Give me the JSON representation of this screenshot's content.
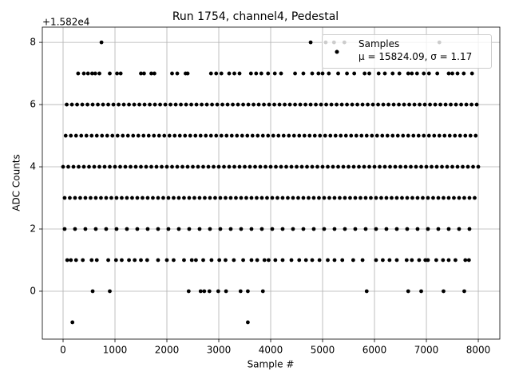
{
  "chart_data": {
    "type": "scatter",
    "title": "Run 1754, channel4, Pedestal",
    "xlabel": "Sample #",
    "ylabel": "ADC Counts",
    "y_offset_label": "+1.582e4",
    "xlim": [
      -400,
      8415
    ],
    "ylim": [
      -1.54,
      8.49
    ],
    "xticks": [
      0,
      1000,
      2000,
      3000,
      4000,
      5000,
      6000,
      7000,
      8000
    ],
    "yticks": [
      0,
      2,
      4,
      6,
      8
    ],
    "grid": true,
    "legend": "upper right",
    "series": [
      {
        "name": "Samples\nμ = 15824.09, σ = 1.17",
        "color": "#000000",
        "x": [
          0,
          100,
          200,
          300,
          400,
          500,
          600,
          700,
          800,
          900,
          1000,
          1100,
          1200,
          1300,
          1400,
          1500,
          1600,
          1700,
          1800,
          1900,
          2000,
          2100,
          2200,
          2300,
          2400,
          2500,
          2600,
          2700,
          2800,
          2900,
          3000,
          3100,
          3200,
          3300,
          3400,
          3500,
          3600,
          3700,
          3800,
          3900,
          4000,
          4100,
          4200,
          4300,
          4400,
          4500,
          4600,
          4700,
          4800,
          4900,
          5000,
          5100,
          5200,
          5300,
          5400,
          5500,
          5600,
          5700,
          5800,
          5900,
          6000,
          6100,
          6200,
          6300,
          6400,
          6500,
          6600,
          6700,
          6800,
          6900,
          7000,
          7100,
          7200,
          7300,
          7400,
          7500,
          7600,
          7700,
          7800,
          7900,
          8000,
          50,
          150,
          250,
          350,
          450,
          550,
          650,
          750,
          850,
          950,
          1050,
          1150,
          1250,
          1350,
          1450,
          1550,
          1650,
          1750,
          1850,
          1950,
          2050,
          2150,
          2250,
          2350,
          2450,
          2550,
          2650,
          2750,
          2850,
          2950,
          3050,
          3150,
          3250,
          3350,
          3450,
          3550,
          3650,
          3750,
          3850,
          3950,
          4050,
          4150,
          4250,
          4350,
          4450,
          4550,
          4650,
          4750,
          4850,
          4950,
          5050,
          5150,
          5250,
          5350,
          5450,
          5550,
          5650,
          5750,
          5850,
          5950,
          6050,
          6150,
          6250,
          6350,
          6450,
          6550,
          6650,
          6750,
          6850,
          6950,
          7050,
          7150,
          7250,
          7350,
          7450,
          7550,
          7650,
          7750,
          7850,
          7950,
          30,
          130,
          230,
          330,
          430,
          530,
          630,
          730,
          830,
          930,
          1030,
          1130,
          1230,
          1330,
          1430,
          1530,
          1630,
          1730,
          1830,
          1930,
          2030,
          2130,
          2230,
          2330,
          2430,
          2530,
          2630,
          2730,
          2830,
          2930,
          3030,
          3130,
          3230,
          3330,
          3430,
          3530,
          3630,
          3730,
          3830,
          3930,
          4030,
          4130,
          4230,
          4330,
          4430,
          4530,
          4630,
          4730,
          4830,
          4930,
          5030,
          5130,
          5230,
          5330,
          5430,
          5530,
          5630,
          5730,
          5830,
          5930,
          6030,
          6130,
          6230,
          6330,
          6430,
          6530,
          6630,
          6730,
          6830,
          6930,
          7030,
          7130,
          7230,
          7330,
          7430,
          7530,
          7630,
          7730,
          7830,
          7930,
          70,
          170,
          270,
          370,
          470,
          570,
          670,
          770,
          870,
          970,
          1070,
          1170,
          1270,
          1370,
          1470,
          1570,
          1670,
          1770,
          1870,
          1970,
          2070,
          2170,
          2270,
          2370,
          2470,
          2570,
          2670,
          2770,
          2870,
          2970,
          3070,
          3170,
          3270,
          3370,
          3470,
          3570,
          3670,
          3770,
          3870,
          3970,
          4070,
          4170,
          4270,
          4370,
          4470,
          4570,
          4670,
          4770,
          4870,
          4970,
          5070,
          5170,
          5270,
          5370,
          5470,
          5570,
          5670,
          5770,
          5870,
          5970,
          6070,
          6170,
          6270,
          6370,
          6470,
          6570,
          6670,
          6770,
          6870,
          6970,
          7070,
          7170,
          7270,
          7370,
          7470,
          7570,
          7670,
          7770,
          7870,
          7970,
          30,
          230,
          430,
          630,
          830,
          1030,
          1230,
          1430,
          1630,
          1830,
          2030,
          2230,
          2430,
          2630,
          2830,
          3030,
          3230,
          3430,
          3630,
          3830,
          4030,
          4230,
          4430,
          4630,
          4830,
          5030,
          5230,
          5430,
          5630,
          5830,
          6030,
          6230,
          6430,
          6630,
          6830,
          7030,
          7230,
          7430,
          7630,
          7830,
          290,
          400,
          480,
          560,
          620,
          700,
          900,
          1040,
          1110,
          1500,
          1560,
          1700,
          1760,
          2100,
          2200,
          2360,
          2400,
          2850,
          2950,
          3050,
          3200,
          3300,
          3400,
          3620,
          3720,
          3820,
          3950,
          4080,
          4200,
          4470,
          4630,
          4800,
          4920,
          5000,
          5120,
          5300,
          5470,
          5610,
          5810,
          5900,
          6080,
          6200,
          6350,
          6480,
          6650,
          6720,
          6820,
          6950,
          7050,
          7210,
          7430,
          7500,
          7600,
          7720,
          7880,
          80,
          150,
          250,
          380,
          550,
          650,
          870,
          1020,
          1130,
          1270,
          1380,
          1500,
          1620,
          1830,
          2000,
          2130,
          2330,
          2480,
          2560,
          2700,
          2860,
          3010,
          3130,
          3290,
          3470,
          3630,
          3740,
          3880,
          3960,
          4090,
          4230,
          4400,
          4550,
          4680,
          4800,
          4940,
          5100,
          5230,
          5380,
          5590,
          5770,
          6030,
          6160,
          6290,
          6430,
          6620,
          6720,
          6860,
          6980,
          7030,
          7190,
          7320,
          7430,
          7560,
          7750,
          7820,
          570,
          900,
          2420,
          2650,
          2720,
          2820,
          2990,
          3140,
          3420,
          3560,
          3850,
          5850,
          6650,
          6900,
          7330,
          7730,
          740,
          4770,
          5060,
          5220,
          5420,
          7250,
          180,
          3560
        ],
        "values": [
          4,
          4,
          4,
          4,
          4,
          4,
          4,
          4,
          4,
          4,
          4,
          4,
          4,
          4,
          4,
          4,
          4,
          4,
          4,
          4,
          4,
          4,
          4,
          4,
          4,
          4,
          4,
          4,
          4,
          4,
          4,
          4,
          4,
          4,
          4,
          4,
          4,
          4,
          4,
          4,
          4,
          4,
          4,
          4,
          4,
          4,
          4,
          4,
          4,
          4,
          4,
          4,
          4,
          4,
          4,
          4,
          4,
          4,
          4,
          4,
          4,
          4,
          4,
          4,
          4,
          4,
          4,
          4,
          4,
          4,
          4,
          4,
          4,
          4,
          4,
          4,
          4,
          4,
          4,
          4,
          4,
          5,
          5,
          5,
          5,
          5,
          5,
          5,
          5,
          5,
          5,
          5,
          5,
          5,
          5,
          5,
          5,
          5,
          5,
          5,
          5,
          5,
          5,
          5,
          5,
          5,
          5,
          5,
          5,
          5,
          5,
          5,
          5,
          5,
          5,
          5,
          5,
          5,
          5,
          5,
          5,
          5,
          5,
          5,
          5,
          5,
          5,
          5,
          5,
          5,
          5,
          5,
          5,
          5,
          5,
          5,
          5,
          5,
          5,
          5,
          5,
          5,
          5,
          5,
          5,
          5,
          5,
          5,
          5,
          5,
          5,
          5,
          5,
          5,
          5,
          5,
          5,
          5,
          5,
          5,
          5,
          3,
          3,
          3,
          3,
          3,
          3,
          3,
          3,
          3,
          3,
          3,
          3,
          3,
          3,
          3,
          3,
          3,
          3,
          3,
          3,
          3,
          3,
          3,
          3,
          3,
          3,
          3,
          3,
          3,
          3,
          3,
          3,
          3,
          3,
          3,
          3,
          3,
          3,
          3,
          3,
          3,
          3,
          3,
          3,
          3,
          3,
          3,
          3,
          3,
          3,
          3,
          3,
          3,
          3,
          3,
          3,
          3,
          3,
          3,
          3,
          3,
          3,
          3,
          3,
          3,
          3,
          3,
          3,
          3,
          3,
          3,
          3,
          3,
          3,
          3,
          3,
          3,
          3,
          3,
          3,
          6,
          6,
          6,
          6,
          6,
          6,
          6,
          6,
          6,
          6,
          6,
          6,
          6,
          6,
          6,
          6,
          6,
          6,
          6,
          6,
          6,
          6,
          6,
          6,
          6,
          6,
          6,
          6,
          6,
          6,
          6,
          6,
          6,
          6,
          6,
          6,
          6,
          6,
          6,
          6,
          6,
          6,
          6,
          6,
          6,
          6,
          6,
          6,
          6,
          6,
          6,
          6,
          6,
          6,
          6,
          6,
          6,
          6,
          6,
          6,
          6,
          6,
          6,
          6,
          6,
          6,
          6,
          6,
          6,
          6,
          6,
          6,
          6,
          6,
          6,
          6,
          6,
          6,
          6,
          6,
          2,
          2,
          2,
          2,
          2,
          2,
          2,
          2,
          2,
          2,
          2,
          2,
          2,
          2,
          2,
          2,
          2,
          2,
          2,
          2,
          2,
          2,
          2,
          2,
          2,
          2,
          2,
          2,
          2,
          2,
          2,
          2,
          2,
          2,
          2,
          2,
          2,
          2,
          2,
          2,
          7,
          7,
          7,
          7,
          7,
          7,
          7,
          7,
          7,
          7,
          7,
          7,
          7,
          7,
          7,
          7,
          7,
          7,
          7,
          7,
          7,
          7,
          7,
          7,
          7,
          7,
          7,
          7,
          7,
          7,
          7,
          7,
          7,
          7,
          7,
          7,
          7,
          7,
          7,
          7,
          7,
          7,
          7,
          7,
          7,
          7,
          7,
          7,
          7,
          7,
          7,
          7,
          7,
          7,
          7,
          1,
          1,
          1,
          1,
          1,
          1,
          1,
          1,
          1,
          1,
          1,
          1,
          1,
          1,
          1,
          1,
          1,
          1,
          1,
          1,
          1,
          1,
          1,
          1,
          1,
          1,
          1,
          1,
          1,
          1,
          1,
          1,
          1,
          1,
          1,
          1,
          1,
          1,
          1,
          1,
          1,
          1,
          1,
          1,
          1,
          1,
          1,
          1,
          1,
          1,
          1,
          1,
          1,
          1,
          1,
          1,
          0,
          0,
          0,
          0,
          0,
          0,
          0,
          0,
          0,
          0,
          0,
          0,
          0,
          0,
          0,
          0,
          8,
          8,
          8,
          8,
          8,
          8,
          -1,
          -1
        ]
      }
    ]
  }
}
